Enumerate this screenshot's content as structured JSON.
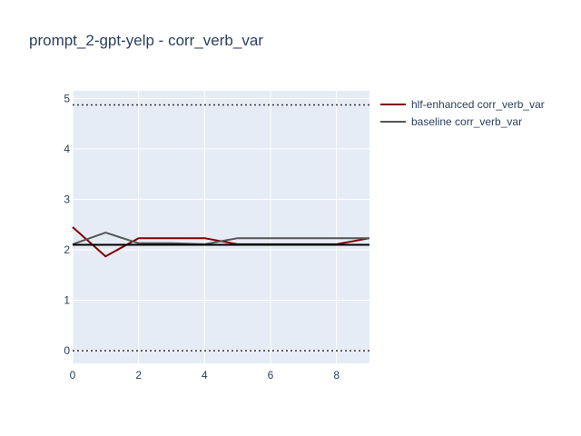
{
  "chart_data": {
    "type": "line",
    "title": "prompt_2-gpt-yelp - corr_verb_var",
    "xlabel": "",
    "ylabel": "",
    "xlim": [
      0,
      9
    ],
    "ylim": [
      -0.25,
      5.15
    ],
    "x_ticks": [
      0,
      2,
      4,
      6,
      8
    ],
    "y_ticks": [
      0,
      1,
      2,
      3,
      4,
      5
    ],
    "x_tick_labels": [
      "0",
      "2",
      "4",
      "6",
      "8"
    ],
    "y_tick_labels": [
      "0",
      "1",
      "2",
      "3",
      "4",
      "5"
    ],
    "grid": true,
    "legend_position": "top-right",
    "x": [
      0,
      1,
      2,
      3,
      4,
      5,
      6,
      7,
      8,
      9
    ],
    "series": [
      {
        "name": "hlf-enhanced corr_verb_var",
        "color": "#800000",
        "values": [
          2.45,
          1.87,
          2.23,
          2.23,
          2.23,
          2.11,
          2.11,
          2.11,
          2.11,
          2.23
        ]
      },
      {
        "name": "baseline corr_verb_var",
        "color": "#555555",
        "values": [
          2.11,
          2.34,
          2.13,
          2.13,
          2.11,
          2.23,
          2.23,
          2.23,
          2.23,
          2.23
        ]
      }
    ],
    "reference_lines": [
      {
        "y": 2.1,
        "style": "solid",
        "color": "#000000"
      },
      {
        "y": 4.87,
        "style": "dotted",
        "color": "#333333"
      },
      {
        "y": 0,
        "style": "dotted",
        "color": "#333333"
      }
    ],
    "plot_background": "#e5ecf6"
  }
}
